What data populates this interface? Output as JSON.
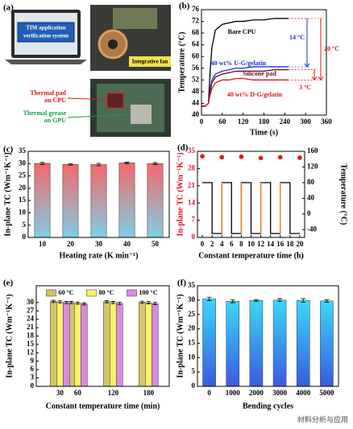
{
  "panel_a": {
    "label": "(a)",
    "laptop_text": [
      "TIM application",
      "verification system"
    ],
    "fan": "Integrative fan",
    "pad": [
      "Thermal pad",
      "on CPU"
    ],
    "grease": [
      "Thermal grease",
      "on GPU"
    ]
  },
  "watermark": "材料分析与应用",
  "chart_data": [
    {
      "type": "line",
      "label": "(b)",
      "xlabel": "Time (s)",
      "ylabel": "Temperature (°C)",
      "xlim": [
        0,
        360
      ],
      "xticks": [
        0,
        60,
        120,
        180,
        240,
        300,
        360
      ],
      "ylim": [
        40,
        76
      ],
      "yticks": [
        40,
        44,
        48,
        52,
        56,
        60,
        64,
        68,
        72,
        76
      ],
      "x": [
        0,
        10,
        20,
        25,
        30,
        40,
        50,
        60,
        80,
        100,
        120,
        150,
        180,
        210,
        240,
        250
      ],
      "series": [
        {
          "name": "Bare CPU",
          "color": "#000000",
          "values": [
            43,
            43,
            44,
            55,
            63,
            69,
            70,
            71,
            71.5,
            72,
            72,
            72.5,
            72.5,
            73,
            73,
            73
          ]
        },
        {
          "name": "40 wt% U-G/gelatin",
          "color": "#1f2fd6",
          "values": [
            43,
            43,
            44,
            49,
            52,
            54,
            54.5,
            55,
            55.5,
            56,
            56,
            56.5,
            56.5,
            56.5,
            56.5,
            56.5
          ]
        },
        {
          "name": "Silicone pad",
          "color": "#5a1020",
          "values": [
            43,
            43,
            44,
            48,
            51,
            53,
            53.5,
            54,
            54.5,
            55,
            55,
            55,
            55,
            55.5,
            55.5,
            55.5
          ]
        },
        {
          "name": "40 wt% D-G/gelatin",
          "color": "#e0151b",
          "values": [
            43,
            43,
            44,
            47,
            49,
            51,
            51.5,
            52,
            52,
            52.5,
            52.5,
            52,
            52,
            52,
            52,
            52
          ]
        }
      ],
      "annotations": [
        "14 °C",
        "20 °C",
        "3 °C"
      ]
    },
    {
      "type": "bar",
      "label": "(c)",
      "xlabel": "Heating rate (K min⁻¹)",
      "ylabel": "In-plane TC (Wm⁻¹K⁻¹)",
      "categories": [
        "10",
        "20",
        "30",
        "40",
        "50"
      ],
      "values": [
        30.1,
        29.7,
        29.6,
        30.3,
        30.0
      ],
      "errors": [
        0.4,
        0.3,
        0.5,
        0.3,
        0.4
      ],
      "ylim": [
        0,
        35
      ],
      "yticks": [
        0,
        5,
        10,
        15,
        20,
        25,
        30,
        35
      ],
      "gradient": [
        "#f4686a",
        "#7fcfe6"
      ]
    },
    {
      "type": "line",
      "label": "(d)",
      "xlabel": "Constant temperature time (h)",
      "ylabel": "In-plane TC (Wm⁻¹K⁻¹)",
      "y2label": "Temperature (°C)",
      "xlim": [
        -1,
        21
      ],
      "xticks": [
        0,
        2,
        4,
        6,
        8,
        10,
        12,
        14,
        16,
        18,
        20
      ],
      "ylim": [
        0,
        35
      ],
      "yticks": [
        0,
        7,
        14,
        21,
        28,
        35
      ],
      "ycolor": "#e0151b",
      "y2lim": [
        -60,
        160
      ],
      "y2ticks": [
        -40,
        0,
        40,
        80,
        120,
        160
      ],
      "series": [
        {
          "color": "#e0151b",
          "style": "markers",
          "x": [
            0,
            4,
            8,
            12,
            16,
            20
          ],
          "values": [
            33,
            32.6,
            32.8,
            32.3,
            32.6,
            32.4
          ]
        },
        {
          "color": "#000000",
          "edge_color": "#e08a2c",
          "style": "line",
          "axis": "y2",
          "x": [
            0,
            2,
            2,
            4,
            4,
            6,
            6,
            8,
            8,
            10,
            10,
            12,
            12,
            14,
            14,
            16,
            16,
            18,
            18,
            20
          ],
          "values": [
            80,
            80,
            -50,
            -50,
            80,
            80,
            -50,
            -50,
            80,
            80,
            -50,
            -50,
            80,
            80,
            -50,
            -50,
            80,
            80,
            -50,
            -50
          ]
        }
      ]
    },
    {
      "type": "bar",
      "label": "(e)",
      "xlabel": "Constant temperature time (min)",
      "ylabel": "In-plane TC (Wm⁻¹K⁻¹)",
      "x": [
        30,
        60,
        120,
        180
      ],
      "xlim": [
        -10,
        215
      ],
      "xticks": [
        30,
        60,
        120,
        180
      ],
      "ylim": [
        0,
        36
      ],
      "yticks": [
        0,
        3,
        6,
        9,
        12,
        15,
        18,
        21,
        24,
        27,
        30
      ],
      "legend": "upper center",
      "series": [
        {
          "name": "60 °C",
          "color": "#d3c46e",
          "values": [
            30.4,
            30.0,
            30.3,
            30.1
          ],
          "errors": [
            0.4,
            0.4,
            0.4,
            0.4
          ]
        },
        {
          "name": "80 °C",
          "color": "#f6f26a",
          "values": [
            30.2,
            29.8,
            30.0,
            29.9
          ],
          "errors": [
            0.4,
            0.4,
            0.4,
            0.4
          ]
        },
        {
          "name": "100 °C",
          "color": "#d98be0",
          "values": [
            30.0,
            29.5,
            29.7,
            29.6
          ],
          "errors": [
            0.4,
            0.4,
            0.4,
            0.4
          ]
        }
      ]
    },
    {
      "type": "bar",
      "label": "(f)",
      "xlabel": "Bending cycles",
      "ylabel": "In-plane TC (Wm⁻¹K⁻¹)",
      "categories": [
        "0",
        "1000",
        "2000",
        "3000",
        "4000",
        "5000"
      ],
      "values": [
        30.4,
        29.6,
        29.9,
        30.0,
        29.9,
        29.7
      ],
      "errors": [
        0.6,
        0.5,
        0.3,
        0.5,
        0.6,
        0.4
      ],
      "ylim": [
        0,
        35
      ],
      "yticks": [
        0,
        5,
        10,
        15,
        20,
        25,
        30,
        35
      ],
      "gradient": [
        "#3ad8f6",
        "#3a5ae0"
      ]
    }
  ]
}
